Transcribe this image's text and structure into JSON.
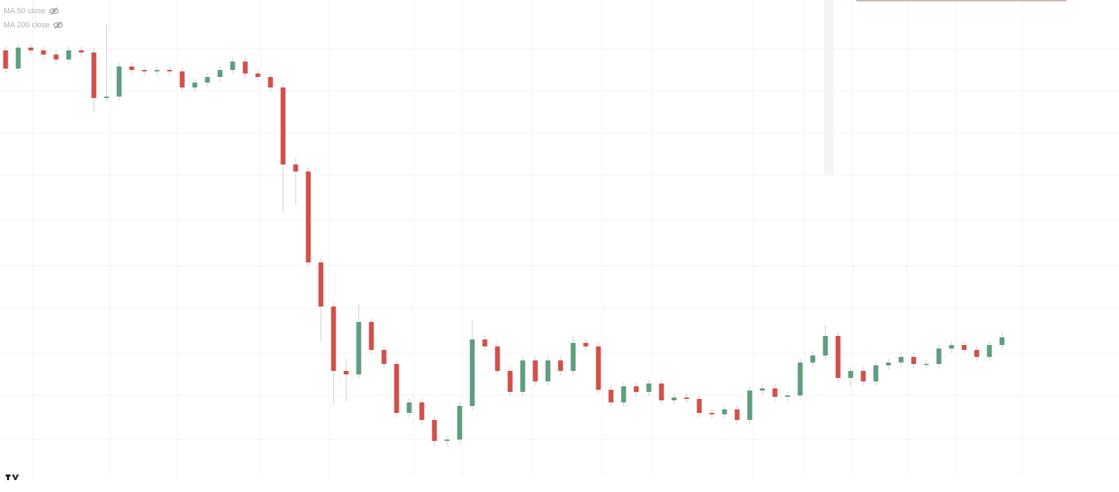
{
  "chart_data": {
    "type": "candlestick",
    "legend": [
      "MA 50 close",
      "MA 200 close"
    ],
    "up_color": "#5e9e7f",
    "down_color": "#d2504a",
    "ylim": [
      0,
      703
    ],
    "open": [
      631,
      605,
      635,
      631,
      625,
      618,
      631,
      628,
      563,
      565,
      608,
      603,
      601,
      603,
      601,
      578,
      585,
      593,
      603,
      615,
      598,
      593,
      578,
      468,
      458,
      328,
      265,
      173,
      168,
      243,
      203,
      183,
      113,
      128,
      103,
      73,
      75,
      123,
      218,
      208,
      173,
      143,
      188,
      158,
      188,
      173,
      213,
      208,
      146,
      128,
      151,
      143,
      155,
      131,
      135,
      133,
      113,
      111,
      118,
      103,
      145,
      148,
      136,
      138,
      185,
      195,
      223,
      163,
      173,
      158,
      181,
      185,
      193,
      183,
      183,
      205,
      210,
      203,
      193,
      210
    ],
    "high": [
      637,
      641,
      641,
      637,
      631,
      637,
      637,
      634,
      668,
      614,
      614,
      609,
      609,
      609,
      607,
      591,
      599,
      609,
      621,
      621,
      604,
      599,
      584,
      478,
      464,
      334,
      271,
      190,
      268,
      249,
      209,
      189,
      134,
      134,
      109,
      81,
      129,
      245,
      224,
      214,
      179,
      194,
      194,
      194,
      194,
      223,
      219,
      214,
      152,
      157,
      157,
      161,
      161,
      141,
      141,
      139,
      119,
      124,
      124,
      151,
      154,
      154,
      144,
      191,
      201,
      238,
      229,
      179,
      179,
      187,
      191,
      199,
      199,
      189,
      211,
      216,
      216,
      209,
      216,
      228
    ],
    "low": [
      599,
      599,
      625,
      619,
      612,
      612,
      622,
      543,
      557,
      559,
      597,
      595,
      595,
      595,
      572,
      572,
      579,
      587,
      597,
      592,
      587,
      572,
      400,
      410,
      322,
      215,
      125,
      130,
      162,
      197,
      177,
      107,
      107,
      97,
      65,
      67,
      69,
      117,
      202,
      167,
      137,
      137,
      152,
      152,
      167,
      167,
      202,
      140,
      122,
      122,
      137,
      137,
      125,
      125,
      127,
      107,
      105,
      105,
      97,
      97,
      139,
      130,
      130,
      132,
      179,
      189,
      157,
      150,
      152,
      152,
      175,
      179,
      177,
      177,
      177,
      199,
      197,
      187,
      187,
      204
    ],
    "close": [
      605,
      635,
      631,
      625,
      618,
      631,
      628,
      563,
      565,
      608,
      603,
      601,
      603,
      601,
      578,
      585,
      593,
      603,
      615,
      598,
      593,
      578,
      468,
      458,
      328,
      265,
      173,
      168,
      243,
      203,
      183,
      113,
      128,
      103,
      73,
      75,
      123,
      218,
      208,
      173,
      143,
      188,
      158,
      188,
      173,
      213,
      208,
      146,
      128,
      151,
      143,
      155,
      131,
      135,
      133,
      113,
      111,
      118,
      103,
      145,
      148,
      136,
      138,
      185,
      195,
      223,
      163,
      173,
      158,
      181,
      185,
      193,
      183,
      183,
      205,
      210,
      203,
      193,
      210,
      221
    ]
  }
}
